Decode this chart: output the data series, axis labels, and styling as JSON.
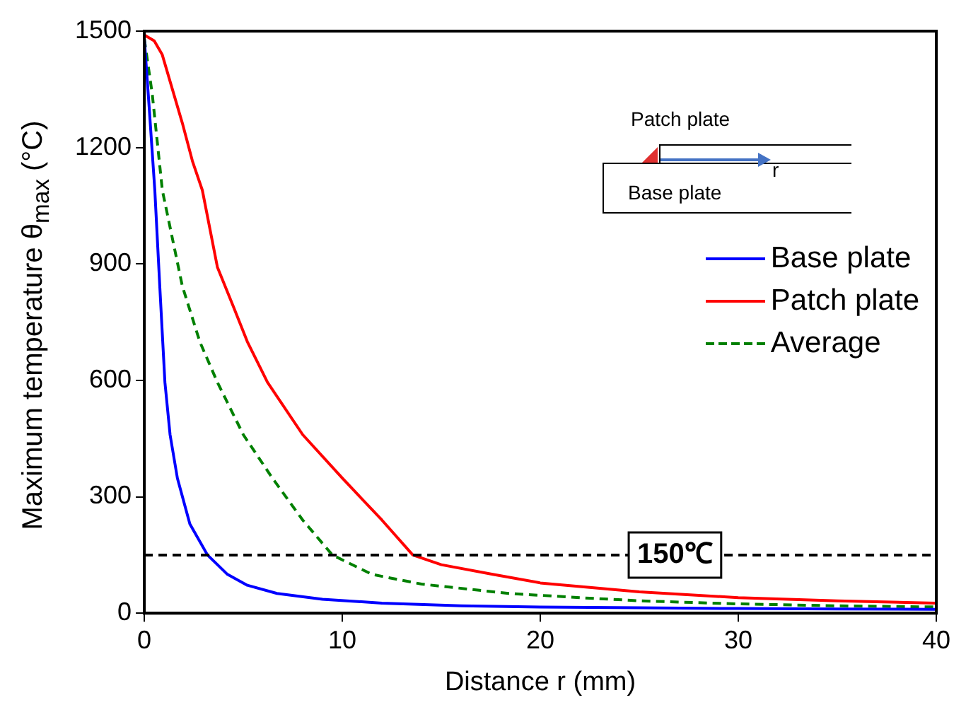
{
  "chart_data": {
    "type": "line",
    "xlabel": "Distance r (mm)",
    "ylabel": "Maximum temperature  θ$_{max}$ (°C)",
    "xlim": [
      0,
      40
    ],
    "xticks": [
      0,
      10,
      20,
      30,
      40
    ],
    "ylim": [
      0,
      1500
    ],
    "yticks": [
      0,
      300,
      600,
      900,
      1200,
      1500
    ],
    "grid": false,
    "legend": "right",
    "marker": "none",
    "series": [
      {
        "name": "Base plate",
        "color": "#0000ff",
        "line_style": "solid",
        "x": [
          0,
          0.25,
          0.53,
          0.78,
          1.04,
          1.3,
          1.67,
          2.3,
          3.19,
          4.2,
          5.2,
          6.7,
          9,
          12,
          16,
          20,
          25,
          30,
          35,
          40
        ],
        "values": [
          1480,
          1300,
          1090,
          843,
          595,
          460,
          348,
          230,
          150,
          100,
          72,
          51,
          36,
          26,
          19,
          16,
          14,
          12,
          11,
          10
        ]
      },
      {
        "name": "Patch plate",
        "color": "#ff0000",
        "line_style": "solid",
        "x": [
          0,
          0.5,
          0.9,
          1.92,
          2.43,
          2.93,
          3.69,
          4.5,
          5.2,
          6.22,
          8,
          10,
          12,
          13.56,
          15,
          17.6,
          20,
          25,
          30,
          35,
          40
        ],
        "values": [
          1490,
          1475,
          1440,
          1263,
          1165,
          1090,
          892,
          790,
          700,
          595,
          460,
          348,
          240,
          150,
          125,
          100,
          78,
          55,
          40,
          32,
          26
        ]
      },
      {
        "name": "Average",
        "color": "#008000",
        "line_style": "dashed",
        "x": [
          0,
          0.4,
          0.91,
          1.92,
          2.8,
          3.69,
          5,
          6.47,
          8,
          9.5,
          11.5,
          14,
          18.4,
          22,
          25,
          30,
          35,
          40
        ],
        "values": [
          1480,
          1338,
          1090,
          843,
          700,
          595,
          460,
          348,
          240,
          150,
          100,
          75,
          51,
          40,
          32,
          24,
          19,
          16
        ]
      }
    ],
    "ref_lines": [
      {
        "axis": "y",
        "value": 150,
        "label": "150℃",
        "color": "#000000",
        "line_style": "dashed"
      }
    ],
    "annotations": [
      "Patch plate",
      "Base plate",
      "r"
    ]
  }
}
